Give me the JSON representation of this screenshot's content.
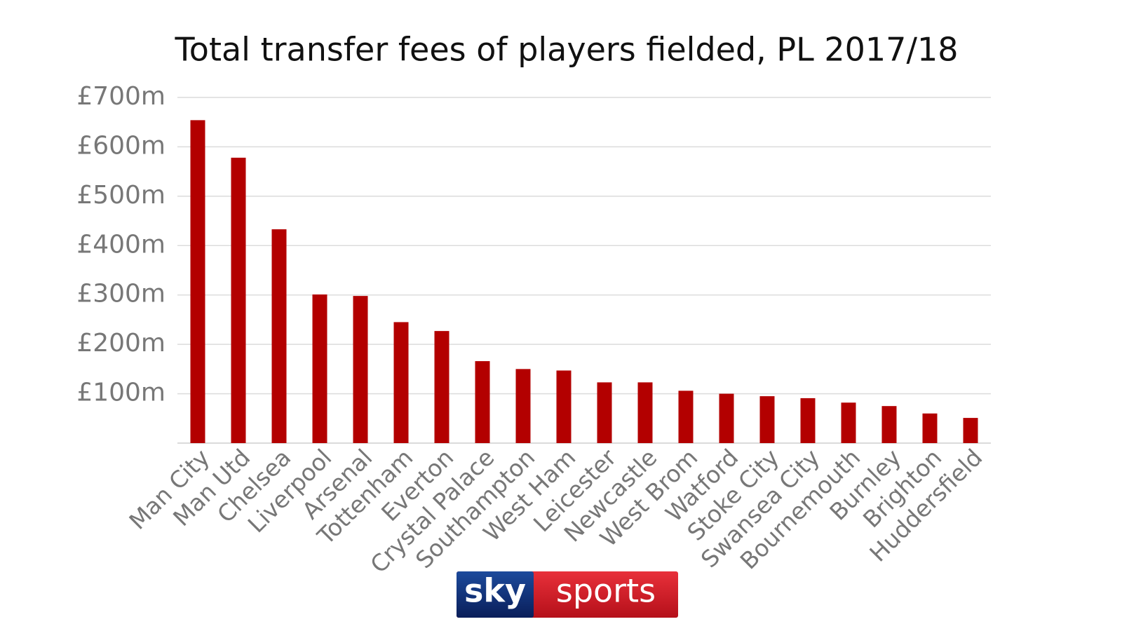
{
  "chart_data": {
    "type": "bar",
    "title": "Total transfer fees of players fielded, PL 2017/18",
    "categories": [
      "Man City",
      "Man Utd",
      "Chelsea",
      "Liverpool",
      "Arsenal",
      "Tottenham",
      "Everton",
      "Crystal Palace",
      "Southampton",
      "West Ham",
      "Leicester",
      "Newcastle",
      "West Brom",
      "Watford",
      "Stoke City",
      "Swansea City",
      "Bournemouth",
      "Burnley",
      "Brighton",
      "Huddersfield"
    ],
    "values": [
      654,
      578,
      433,
      301,
      298,
      245,
      227,
      166,
      150,
      147,
      123,
      123,
      106,
      100,
      95,
      91,
      82,
      75,
      60,
      51
    ],
    "color": "#b30000",
    "ylim": [
      0,
      700
    ],
    "yticks": [
      {
        "value": 100,
        "label": "£100m"
      },
      {
        "value": 200,
        "label": "£200m"
      },
      {
        "value": 300,
        "label": "£300m"
      },
      {
        "value": 400,
        "label": "£400m"
      },
      {
        "value": 500,
        "label": "£500m"
      },
      {
        "value": 600,
        "label": "£600m"
      },
      {
        "value": 700,
        "label": "£700m"
      }
    ],
    "grid": true
  },
  "logo": {
    "left": "sky",
    "right": "sports"
  }
}
